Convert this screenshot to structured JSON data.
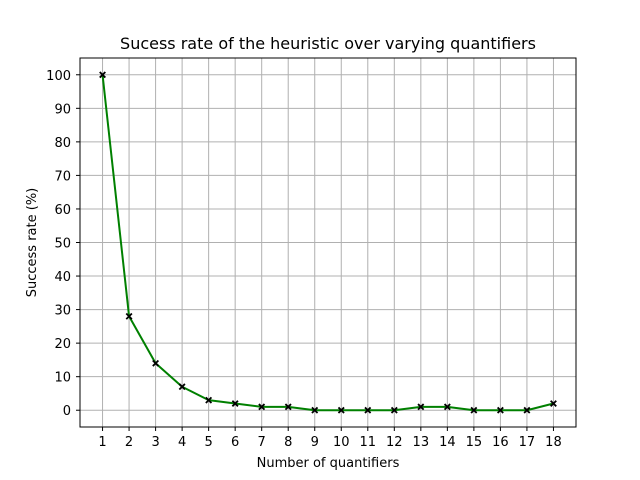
{
  "chart_data": {
    "type": "line",
    "title": "Sucess rate of the heuristic over varying quantifiers",
    "xlabel": "Number of quantifiers",
    "ylabel": "Success rate (%)",
    "x": [
      1,
      2,
      3,
      4,
      5,
      6,
      7,
      8,
      9,
      10,
      11,
      12,
      13,
      14,
      15,
      16,
      17,
      18
    ],
    "series": [
      {
        "values": [
          100,
          28,
          14,
          7,
          3,
          2,
          1,
          1,
          0,
          0,
          0,
          0,
          1,
          1,
          0,
          0,
          0,
          2
        ],
        "color": "#008000",
        "marker": "x",
        "marker_color": "#000000"
      }
    ],
    "xticks": [
      1,
      2,
      3,
      4,
      5,
      6,
      7,
      8,
      9,
      10,
      11,
      12,
      13,
      14,
      15,
      16,
      17,
      18
    ],
    "yticks": [
      0,
      10,
      20,
      30,
      40,
      50,
      60,
      70,
      80,
      90,
      100
    ],
    "xlim": [
      0.15,
      18.85
    ],
    "ylim": [
      -5,
      105
    ],
    "grid": true,
    "grid_color": "#b0b0b0"
  }
}
